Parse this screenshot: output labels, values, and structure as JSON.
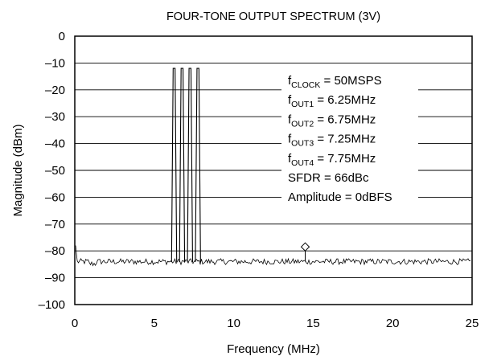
{
  "chart_data": {
    "type": "line",
    "title": "FOUR-TONE OUTPUT SPECTRUM (3V)",
    "xlabel": "Frequency (MHz)",
    "ylabel": "Magnitude (dBm)",
    "xlim": [
      0,
      25
    ],
    "ylim": [
      -100,
      0
    ],
    "x_ticks": [
      0,
      5,
      10,
      15,
      20,
      25
    ],
    "x_tick_labels": [
      "0",
      "5",
      "10",
      "15",
      "20",
      "25"
    ],
    "y_ticks": [
      0,
      -10,
      -20,
      -30,
      -40,
      -50,
      -60,
      -70,
      -80,
      -90,
      -100
    ],
    "y_tick_labels": [
      "0",
      "–10",
      "–20",
      "–30",
      "–40",
      "–50",
      "–60",
      "–70",
      "–80",
      "–90",
      "–100"
    ],
    "grid": "horizontal",
    "noise_floor_dBm": -84,
    "tones": [
      {
        "freq_MHz": 6.25,
        "peak_dBm": -12
      },
      {
        "freq_MHz": 6.75,
        "peak_dBm": -12
      },
      {
        "freq_MHz": 7.25,
        "peak_dBm": -12
      },
      {
        "freq_MHz": 7.75,
        "peak_dBm": -12
      }
    ],
    "spur_marker": {
      "freq_MHz": 14.5,
      "level_dBm": -78.5,
      "symbol": "diamond"
    },
    "annotation_lines": [
      {
        "main": "f",
        "sub": "CLOCK",
        "rest": " = 50MSPS"
      },
      {
        "main": "f",
        "sub": "OUT1",
        "rest": " = 6.25MHz"
      },
      {
        "main": "f",
        "sub": "OUT2",
        "rest": " = 6.75MHz"
      },
      {
        "main": "f",
        "sub": "OUT3",
        "rest": " = 7.25MHz"
      },
      {
        "main": "f",
        "sub": "OUT4",
        "rest": " = 7.75MHz"
      },
      {
        "main": "SFDR = 66dBc",
        "sub": "",
        "rest": ""
      },
      {
        "main": "Amplitude = 0dBFS",
        "sub": "",
        "rest": ""
      }
    ]
  }
}
